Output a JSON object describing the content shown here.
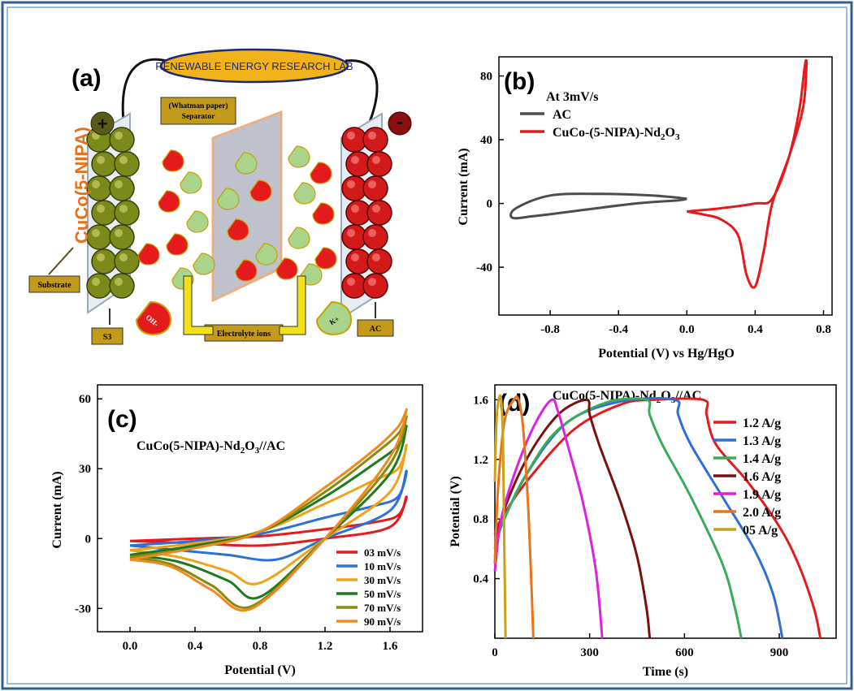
{
  "panel_a": {
    "label": "(a)",
    "lab_name": "RENEWABLE ENERGY RESEARCH LAB",
    "electrode_material": "CuCo(5-NIPA)",
    "plus": "+",
    "minus": "-",
    "separator_line1": "(Whatman paper)",
    "separator_line2": "Separator",
    "substrate": "Substrate",
    "s3": "S3",
    "ac": "AC",
    "electrolyte": "Electrolyte ions",
    "oh_ion": "OH-",
    "k_ion": "K+",
    "colors": {
      "positive_electrode": "#7c8a1c",
      "negative_electrode": "#d21a1a",
      "separator": "#b9bcc8",
      "lab_oval": "#f2b31a"
    }
  },
  "panel_b": {
    "label": "(b)",
    "annotation": "At 3mV/s",
    "xlabel": "Potential (V) vs Hg/HgO",
    "ylabel": "Current (mA)",
    "legend": [
      "AC",
      "CuCo-(5-NIPA)-Nd2O3"
    ],
    "x_ticks": [
      "-0.8",
      "-0.4",
      "0.0",
      "0.4",
      "0.8"
    ],
    "y_ticks": [
      "80",
      "40",
      "0",
      "-40"
    ]
  },
  "panel_c": {
    "label": "(c)",
    "annotation": "CuCo(5-NIPA)-Nd2O3//AC",
    "xlabel": "Potential (V)",
    "ylabel": "Current (mA)",
    "legend": [
      "03 mV/s",
      "10 mV/s",
      "30 mV/s",
      "50 mV/s",
      "70 mV/s",
      "90 mV/s"
    ],
    "x_ticks": [
      "0.0",
      "0.4",
      "0.8",
      "1.2",
      "1.6"
    ],
    "y_ticks": [
      "60",
      "30",
      "0",
      "-30"
    ]
  },
  "panel_d": {
    "label": "(d)",
    "annotation": "CuCo(5-NIPA)-Nd2O3//AC",
    "xlabel": "Time (s)",
    "ylabel": "Potential (V)",
    "legend": [
      "1.2 A/g",
      "1.3 A/g",
      "1.4 A/g",
      "1.6 A/g",
      "1.9 A/g",
      "2.0 A/g",
      "05 A/g"
    ],
    "x_ticks": [
      "0",
      "300",
      "600",
      "900"
    ],
    "y_ticks": [
      "1.6",
      "1.2",
      "0.8",
      "0.4"
    ]
  },
  "chart_data": [
    {
      "type": "line",
      "panel": "b",
      "xlabel": "Potential (V) vs Hg/HgO",
      "ylabel": "Current (mA)",
      "xlim": [
        -1.1,
        0.85
      ],
      "ylim": [
        -70,
        92
      ],
      "series": [
        {
          "name": "AC",
          "color": "#4d4d4d",
          "x": [
            0.0,
            -0.2,
            -0.5,
            -0.8,
            -1.0,
            -1.02,
            -0.9,
            -0.6,
            -0.3,
            -0.05,
            0.0
          ],
          "y": [
            3,
            5,
            6,
            5,
            -3,
            -9,
            -8,
            -4,
            0,
            2,
            3
          ]
        },
        {
          "name": "CuCo-(5-NIPA)-Nd2O3",
          "color": "#e41a1c",
          "x": [
            0.0,
            0.2,
            0.4,
            0.5,
            0.6,
            0.66,
            0.69,
            0.7,
            0.68,
            0.6,
            0.5,
            0.45,
            0.4,
            0.35,
            0.3,
            0.2,
            0.1,
            0.0
          ],
          "y": [
            -5,
            -3,
            0,
            3,
            30,
            60,
            86,
            87,
            60,
            30,
            0,
            -30,
            -52,
            -45,
            -20,
            -10,
            -7,
            -5
          ]
        }
      ]
    },
    {
      "type": "line",
      "panel": "c",
      "xlabel": "Potential (V)",
      "ylabel": "Current (mA)",
      "xlim": [
        -0.2,
        1.8
      ],
      "ylim": [
        -40,
        66
      ],
      "series": [
        {
          "name": "03 mV/s",
          "color": "#e41a1c",
          "x": [
            0.0,
            0.4,
            0.8,
            1.2,
            1.5,
            1.65,
            1.7,
            1.6,
            1.2,
            0.8,
            0.4,
            0.0
          ],
          "y": [
            -1,
            0,
            1,
            4,
            7,
            10,
            18,
            5,
            0,
            -3,
            -2,
            -1
          ]
        },
        {
          "name": "10 mV/s",
          "color": "#2f6fd6",
          "x": [
            0.0,
            0.4,
            0.8,
            1.2,
            1.5,
            1.65,
            1.7,
            1.6,
            1.2,
            0.9,
            0.6,
            0.3,
            0.0
          ],
          "y": [
            -3,
            -1,
            2,
            9,
            14,
            18,
            29,
            12,
            0,
            -9,
            -7,
            -5,
            -3
          ]
        },
        {
          "name": "30 mV/s",
          "color": "#f0a21a",
          "x": [
            0.0,
            0.4,
            0.8,
            1.2,
            1.5,
            1.65,
            1.7,
            1.6,
            1.2,
            0.8,
            0.6,
            0.3,
            0.0
          ],
          "y": [
            -5,
            -2,
            3,
            15,
            25,
            30,
            40,
            20,
            0,
            -19,
            -14,
            -8,
            -5
          ]
        },
        {
          "name": "50 mV/s",
          "color": "#1e7a1e",
          "x": [
            0.0,
            0.4,
            0.8,
            1.2,
            1.5,
            1.65,
            1.7,
            1.6,
            1.2,
            0.8,
            0.6,
            0.3,
            0.0
          ],
          "y": [
            -7,
            -3,
            3,
            18,
            32,
            40,
            48,
            28,
            0,
            -25,
            -18,
            -10,
            -7
          ]
        },
        {
          "name": "70 mV/s",
          "color": "#8a8a10",
          "x": [
            0.0,
            0.4,
            0.8,
            1.2,
            1.5,
            1.65,
            1.7,
            1.6,
            1.2,
            0.75,
            0.5,
            0.25,
            0.0
          ],
          "y": [
            -8,
            -4,
            3,
            20,
            36,
            45,
            52,
            32,
            0,
            -29,
            -20,
            -11,
            -8
          ]
        },
        {
          "name": "90 mV/s",
          "color": "#f08a1c",
          "x": [
            0.0,
            0.4,
            0.8,
            1.2,
            1.5,
            1.65,
            1.7,
            1.6,
            1.2,
            0.75,
            0.5,
            0.25,
            0.0
          ],
          "y": [
            -9,
            -4,
            3,
            22,
            38,
            48,
            55,
            35,
            0,
            -30,
            -22,
            -12,
            -9
          ]
        }
      ]
    },
    {
      "type": "line",
      "panel": "d",
      "xlabel": "Time (s)",
      "ylabel": "Potential (V)",
      "xlim": [
        0,
        1080
      ],
      "ylim": [
        0,
        1.7
      ],
      "series": [
        {
          "name": "1.2 A/g",
          "color": "#e41a1c",
          "x": [
            0,
            20,
            100,
            250,
            400,
            500,
            660,
            670,
            700,
            800,
            900,
            960,
            1010,
            1030
          ],
          "y": [
            0.7,
            0.8,
            1.05,
            1.4,
            1.57,
            1.6,
            1.6,
            1.5,
            1.3,
            1.05,
            0.75,
            0.5,
            0.2,
            0
          ]
        },
        {
          "name": "1.3 A/g",
          "color": "#2f6fd6",
          "x": [
            0,
            20,
            100,
            230,
            400,
            570,
            580,
            620,
            720,
            820,
            880,
            910
          ],
          "y": [
            0.6,
            0.75,
            1.1,
            1.45,
            1.59,
            1.6,
            1.5,
            1.3,
            0.95,
            0.6,
            0.3,
            0
          ]
        },
        {
          "name": "1.4 A/g",
          "color": "#3aab5a",
          "x": [
            0,
            20,
            100,
            200,
            350,
            480,
            490,
            530,
            620,
            720,
            760,
            780
          ],
          "y": [
            0.55,
            0.75,
            1.1,
            1.4,
            1.58,
            1.6,
            1.5,
            1.3,
            0.95,
            0.5,
            0.2,
            0
          ]
        },
        {
          "name": "1.6 A/g",
          "color": "#7a1010",
          "x": [
            0,
            20,
            100,
            200,
            290,
            300,
            330,
            400,
            450,
            480,
            490
          ],
          "y": [
            0.5,
            0.8,
            1.2,
            1.5,
            1.6,
            1.5,
            1.3,
            0.9,
            0.55,
            0.2,
            0
          ]
        },
        {
          "name": "1.9 A/g",
          "color": "#e020e0",
          "x": [
            0,
            20,
            70,
            130,
            180,
            200,
            230,
            280,
            320,
            340
          ],
          "y": [
            0.45,
            0.8,
            1.15,
            1.45,
            1.6,
            1.52,
            1.3,
            0.9,
            0.45,
            0
          ]
        },
        {
          "name": "2.0 A/g",
          "color": "#e8741c",
          "x": [
            0,
            10,
            30,
            60,
            75,
            90,
            105,
            115,
            122
          ],
          "y": [
            0.5,
            1.0,
            1.45,
            1.6,
            1.6,
            1.4,
            0.9,
            0.4,
            0
          ]
        },
        {
          "name": "05 A/g",
          "color": "#c9a21a",
          "x": [
            0,
            5,
            12,
            20,
            26,
            30,
            34
          ],
          "y": [
            1.05,
            1.45,
            1.6,
            1.6,
            1.3,
            0.6,
            0
          ]
        }
      ]
    }
  ]
}
